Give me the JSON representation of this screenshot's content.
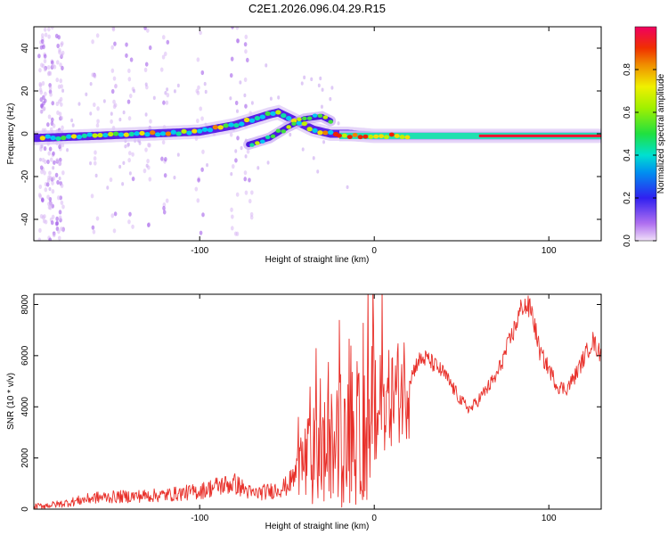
{
  "chart_data": [
    {
      "type": "heatmap",
      "title": "C2E1.2026.096.04.29.R15",
      "xlabel": "Height of straight line (km)",
      "ylabel": "Frequency (Hz)",
      "xlim": [
        -195,
        130
      ],
      "ylim": [
        -50,
        50
      ],
      "xticks": [
        -100,
        0,
        100
      ],
      "xtick_labels": [
        "-100",
        "0",
        "100"
      ],
      "yticks": [
        -40,
        -20,
        0,
        20,
        40
      ],
      "ytick_labels": [
        "-40",
        "-20",
        "0",
        "20",
        "40"
      ],
      "colorbar": {
        "label": "Normalized spectral amplitude",
        "ticks": [
          0.0,
          0.2,
          0.4,
          0.6,
          0.8
        ],
        "tick_labels": [
          "0.0",
          "0.2",
          "0.4",
          "0.6",
          "0.8"
        ]
      },
      "ridge": {
        "x": [
          -195,
          -160,
          -130,
          -100,
          -80,
          -60,
          -55,
          -45,
          -35,
          -25,
          -15,
          0,
          20,
          50,
          80,
          100,
          130
        ],
        "y": [
          -2,
          -1,
          0,
          1,
          4,
          9,
          10,
          6,
          2,
          0,
          0,
          -1,
          -1,
          -1,
          -1,
          -1,
          -1
        ]
      },
      "branch": {
        "x": [
          -72,
          -60,
          -50,
          -40,
          -30,
          -25
        ],
        "y": [
          -5,
          -2,
          3,
          7,
          8,
          6
        ]
      }
    },
    {
      "type": "line",
      "xlabel": "Height of straight line (km)",
      "ylabel": "SNR (10 * v/v)",
      "xlim": [
        -195,
        130
      ],
      "ylim": [
        0,
        8400
      ],
      "xticks": [
        -100,
        0,
        100
      ],
      "xtick_labels": [
        "-100",
        "0",
        "100"
      ],
      "yticks": [
        0,
        2000,
        4000,
        6000,
        8000
      ],
      "ytick_labels": [
        "0",
        "2000",
        "4000",
        "6000",
        "8000"
      ],
      "series": [
        {
          "name": "SNR",
          "color": "#e8302a",
          "x": [
            -195,
            -180,
            -160,
            -140,
            -120,
            -100,
            -90,
            -80,
            -70,
            -60,
            -50,
            -40,
            -30,
            -20,
            -10,
            0,
            10,
            20,
            25,
            30,
            40,
            50,
            55,
            60,
            70,
            80,
            85,
            90,
            95,
            100,
            105,
            110,
            115,
            120,
            125,
            130
          ],
          "y": [
            100,
            200,
            450,
            500,
            550,
            700,
            900,
            1000,
            600,
            700,
            900,
            1800,
            2200,
            2500,
            2600,
            3800,
            4400,
            5000,
            5800,
            5900,
            5300,
            4200,
            3900,
            4300,
            5200,
            7000,
            8000,
            7800,
            6100,
            5500,
            4800,
            4700,
            5200,
            5900,
            6600,
            6000
          ]
        }
      ]
    }
  ],
  "colors": {
    "line": "#e8302a",
    "background": "#ffffff"
  }
}
